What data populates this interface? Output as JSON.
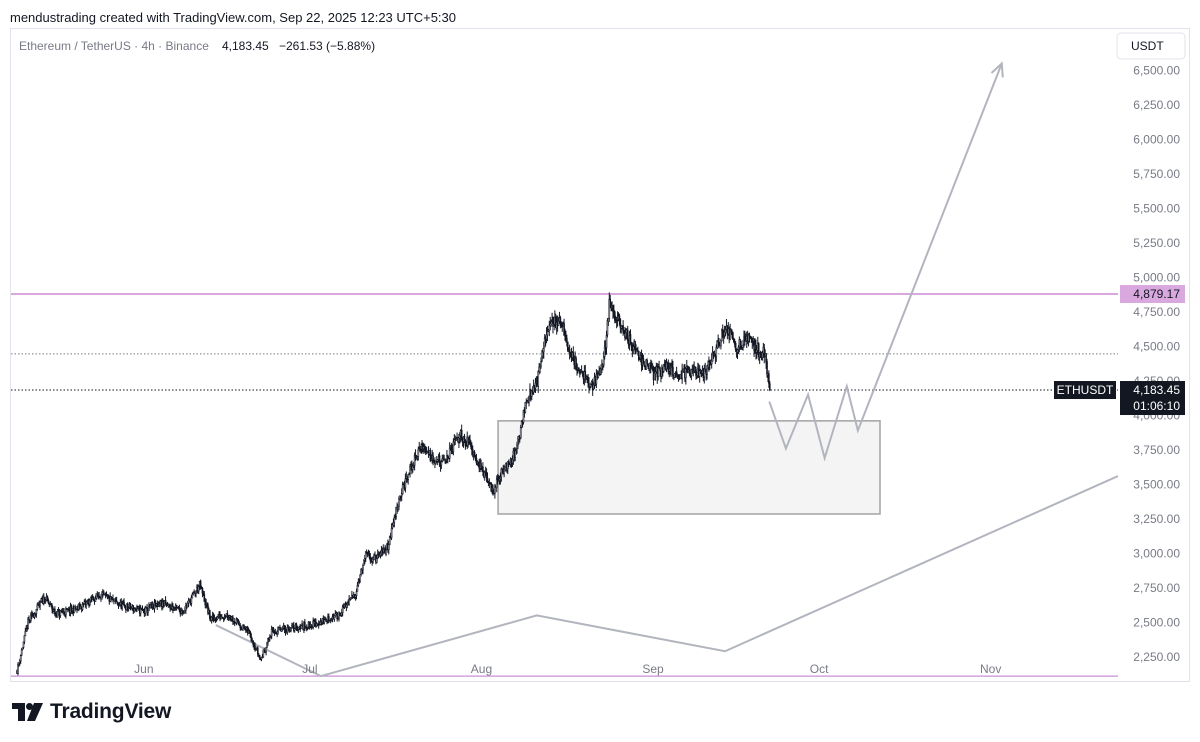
{
  "header": {
    "text": "mendustrading created with TradingView.com, Sep 22, 2025 12:23 UTC+5:30"
  },
  "legend": {
    "symbol": "Ethereum / TetherUS · 4h · Binance",
    "price": "4,183.45",
    "change": "−261.53 (−5.88%)"
  },
  "currency_button": "USDT",
  "logo_text": "TradingView",
  "colors": {
    "resistance": "#d9a8df",
    "support": "#c98fd6",
    "candle": "#131722",
    "drawing": "#b2b5be",
    "box_fill": "#f4f4f4"
  },
  "chart_data": {
    "type": "candlestick",
    "symbol": "ETHUSDT",
    "exchange": "Binance",
    "interval": "4h",
    "yaxis": {
      "ticks": [
        2250,
        2500,
        2750,
        3000,
        3250,
        3500,
        3750,
        4000,
        4250,
        4500,
        4750,
        5000,
        5250,
        5500,
        5750,
        6000,
        6250,
        6500
      ],
      "tick_labels": [
        "2,250.00",
        "2,500.00",
        "2,750.00",
        "3,000.00",
        "3,250.00",
        "3,500.00",
        "3,750.00",
        "4,000.00",
        "4,250.00",
        "4,500.00",
        "4,750.00",
        "5,000.00",
        "5,250.00",
        "5,500.00",
        "5,750.00",
        "6,000.00",
        "6,250.00",
        "6,500.00"
      ],
      "range": [
        2060,
        6800
      ],
      "scale": "linear"
    },
    "xaxis": {
      "ticks": [
        "2025-06-01",
        "2025-07-01",
        "2025-08-01",
        "2025-09-01",
        "2025-10-01",
        "2025-11-01"
      ],
      "tick_labels": [
        "Jun",
        "Jul",
        "Aug",
        "Sep",
        "Oct",
        "Nov"
      ],
      "range": [
        "2025-05-08",
        "2025-11-24"
      ]
    },
    "price_path": [
      [
        "2025-05-09",
        2150
      ],
      [
        "2025-05-11",
        2500
      ],
      [
        "2025-05-14",
        2680
      ],
      [
        "2025-05-16",
        2560
      ],
      [
        "2025-05-20",
        2600
      ],
      [
        "2025-05-24",
        2700
      ],
      [
        "2025-05-28",
        2620
      ],
      [
        "2025-06-01",
        2580
      ],
      [
        "2025-06-04",
        2640
      ],
      [
        "2025-06-08",
        2580
      ],
      [
        "2025-06-11",
        2770
      ],
      [
        "2025-06-13",
        2520
      ],
      [
        "2025-06-16",
        2560
      ],
      [
        "2025-06-20",
        2420
      ],
      [
        "2025-06-22",
        2230
      ],
      [
        "2025-06-24",
        2430
      ],
      [
        "2025-06-28",
        2460
      ],
      [
        "2025-07-02",
        2490
      ],
      [
        "2025-07-06",
        2550
      ],
      [
        "2025-07-09",
        2700
      ],
      [
        "2025-07-11",
        2980
      ],
      [
        "2025-07-13",
        2960
      ],
      [
        "2025-07-15",
        3050
      ],
      [
        "2025-07-17",
        3400
      ],
      [
        "2025-07-19",
        3600
      ],
      [
        "2025-07-21",
        3780
      ],
      [
        "2025-07-23",
        3700
      ],
      [
        "2025-07-25",
        3650
      ],
      [
        "2025-07-28",
        3860
      ],
      [
        "2025-07-30",
        3780
      ],
      [
        "2025-08-01",
        3600
      ],
      [
        "2025-08-03",
        3450
      ],
      [
        "2025-08-05",
        3620
      ],
      [
        "2025-08-07",
        3720
      ],
      [
        "2025-08-09",
        4100
      ],
      [
        "2025-08-11",
        4250
      ],
      [
        "2025-08-13",
        4650
      ],
      [
        "2025-08-15",
        4700
      ],
      [
        "2025-08-17",
        4450
      ],
      [
        "2025-08-19",
        4300
      ],
      [
        "2025-08-21",
        4200
      ],
      [
        "2025-08-23",
        4400
      ],
      [
        "2025-08-24",
        4800
      ],
      [
        "2025-08-26",
        4650
      ],
      [
        "2025-08-28",
        4520
      ],
      [
        "2025-08-30",
        4400
      ],
      [
        "2025-09-01",
        4300
      ],
      [
        "2025-09-03",
        4350
      ],
      [
        "2025-09-05",
        4300
      ],
      [
        "2025-09-07",
        4310
      ],
      [
        "2025-09-10",
        4300
      ],
      [
        "2025-09-12",
        4450
      ],
      [
        "2025-09-14",
        4650
      ],
      [
        "2025-09-16",
        4500
      ],
      [
        "2025-09-18",
        4560
      ],
      [
        "2025-09-20",
        4470
      ],
      [
        "2025-09-21",
        4450
      ],
      [
        "2025-09-22",
        4183
      ]
    ],
    "last_price": 4183.45,
    "last_price_label": "4,183.45",
    "last_price_timer": "01:06:10",
    "horizontal_lines": [
      {
        "price": 4879.17,
        "label": "4,879.17",
        "style": "solid",
        "color": "#d9a8df"
      },
      {
        "price": 2110,
        "style": "solid",
        "color": "#c98fd6"
      },
      {
        "price": 4445,
        "style": "dotted",
        "color": "#787b86"
      },
      {
        "price": 4183.45,
        "style": "dotted",
        "color": "#131722"
      }
    ],
    "demand_zone": {
      "price_top": 3960,
      "price_bottom": 3285,
      "start": "2025-08-04",
      "end": "2025-10-12"
    },
    "projection_path": [
      [
        "2025-09-22",
        4100
      ],
      [
        "2025-09-25",
        3760
      ],
      [
        "2025-09-29",
        4150
      ],
      [
        "2025-10-02",
        3690
      ],
      [
        "2025-10-06",
        4210
      ],
      [
        "2025-10-08",
        3890
      ],
      [
        "2025-11-03",
        6550
      ]
    ],
    "projection_arrowhead": "2025-11-03",
    "structure_lines": [
      [
        [
          "2025-06-14",
          2480
        ],
        [
          "2025-07-03",
          2110
        ],
        [
          "2025-08-11",
          2550
        ],
        [
          "2025-09-14",
          2290
        ],
        [
          "2025-11-24",
          3560
        ]
      ]
    ]
  }
}
